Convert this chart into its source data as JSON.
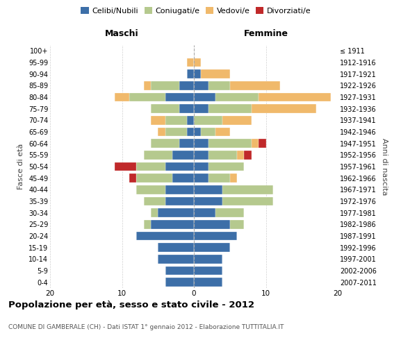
{
  "age_groups": [
    "0-4",
    "5-9",
    "10-14",
    "15-19",
    "20-24",
    "25-29",
    "30-34",
    "35-39",
    "40-44",
    "45-49",
    "50-54",
    "55-59",
    "60-64",
    "65-69",
    "70-74",
    "75-79",
    "80-84",
    "85-89",
    "90-94",
    "95-99",
    "100+"
  ],
  "birth_years": [
    "2007-2011",
    "2002-2006",
    "1997-2001",
    "1992-1996",
    "1987-1991",
    "1982-1986",
    "1977-1981",
    "1972-1976",
    "1967-1971",
    "1962-1966",
    "1957-1961",
    "1952-1956",
    "1947-1951",
    "1942-1946",
    "1937-1941",
    "1932-1936",
    "1927-1931",
    "1922-1926",
    "1917-1921",
    "1912-1916",
    "≤ 1911"
  ],
  "maschi": {
    "celibi": [
      4,
      4,
      5,
      5,
      8,
      6,
      5,
      4,
      4,
      3,
      4,
      3,
      2,
      1,
      1,
      2,
      4,
      2,
      1,
      0,
      0
    ],
    "coniugati": [
      0,
      0,
      0,
      0,
      0,
      1,
      1,
      3,
      4,
      5,
      4,
      4,
      4,
      3,
      3,
      4,
      5,
      4,
      0,
      0,
      0
    ],
    "vedovi": [
      0,
      0,
      0,
      0,
      0,
      0,
      0,
      0,
      0,
      0,
      0,
      0,
      0,
      1,
      2,
      0,
      2,
      1,
      0,
      1,
      0
    ],
    "divorziati": [
      0,
      0,
      0,
      0,
      0,
      0,
      0,
      0,
      0,
      1,
      3,
      0,
      0,
      0,
      0,
      0,
      0,
      0,
      0,
      0,
      0
    ]
  },
  "femmine": {
    "nubili": [
      4,
      4,
      4,
      5,
      6,
      5,
      3,
      4,
      4,
      2,
      2,
      2,
      2,
      1,
      0,
      2,
      3,
      2,
      1,
      0,
      0
    ],
    "coniugate": [
      0,
      0,
      0,
      0,
      0,
      2,
      4,
      7,
      7,
      3,
      5,
      4,
      6,
      2,
      4,
      6,
      6,
      3,
      0,
      0,
      0
    ],
    "vedove": [
      0,
      0,
      0,
      0,
      0,
      0,
      0,
      0,
      0,
      1,
      0,
      1,
      1,
      2,
      4,
      9,
      10,
      7,
      4,
      1,
      0
    ],
    "divorziate": [
      0,
      0,
      0,
      0,
      0,
      0,
      0,
      0,
      0,
      0,
      0,
      1,
      1,
      0,
      0,
      0,
      0,
      0,
      0,
      0,
      0
    ]
  },
  "colors": {
    "celibi": "#3d6fa8",
    "coniugati": "#b5c98e",
    "vedovi": "#f0b96b",
    "divorziati": "#c0292a"
  },
  "legend_labels": [
    "Celibi/Nubili",
    "Coniugati/e",
    "Vedovi/e",
    "Divorziati/e"
  ],
  "title": "Popolazione per età, sesso e stato civile - 2012",
  "subtitle": "COMUNE DI GAMBERALE (CH) - Dati ISTAT 1° gennaio 2012 - Elaborazione TUTTITALIA.IT",
  "label_maschi": "Maschi",
  "label_femmine": "Femmine",
  "ylabel_left": "Fasce di età",
  "ylabel_right": "Anni di nascita",
  "xlim": 20,
  "background_color": "#ffffff",
  "grid_color": "#cccccc",
  "bar_height": 0.75
}
